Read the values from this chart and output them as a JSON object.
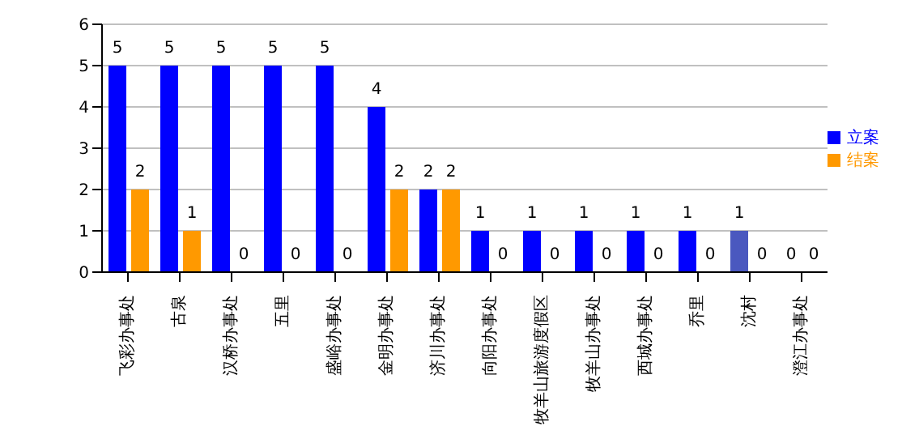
{
  "chart_data": {
    "type": "bar",
    "categories": [
      "飞彩办事处",
      "古泉",
      "汉桥办事处",
      "五里",
      "盛峪办事处",
      "金明办事处",
      "济川办事处",
      "向阳办事处",
      "牧羊山旅游度假区",
      "牧羊山办事处",
      "西城办事处",
      "乔里",
      "沈村",
      "澄江办事处"
    ],
    "series": [
      {
        "name": "立案",
        "color": "#0000ff",
        "colors": [
          "#0000ff",
          "#0000ff",
          "#0000ff",
          "#0000ff",
          "#0000ff",
          "#0000ff",
          "#0000ff",
          "#0000ff",
          "#0000ff",
          "#0000ff",
          "#0000ff",
          "#0000ff",
          "#4a58bf",
          "#0000ff"
        ],
        "values": [
          5,
          5,
          5,
          5,
          5,
          4,
          2,
          1,
          1,
          1,
          1,
          1,
          1,
          0
        ]
      },
      {
        "name": "结案",
        "color": "#ff9900",
        "values": [
          2,
          1,
          0,
          0,
          0,
          2,
          2,
          0,
          0,
          0,
          0,
          0,
          0,
          0
        ]
      }
    ],
    "ylim": [
      0,
      6
    ],
    "yticks": [
      0,
      1,
      2,
      3,
      4,
      5,
      6
    ],
    "grid": "y",
    "legend": "right",
    "data_labels": true
  }
}
